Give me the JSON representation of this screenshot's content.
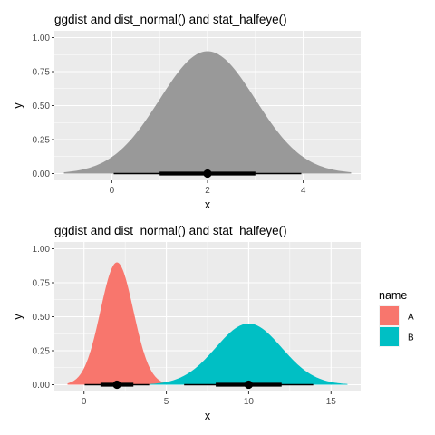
{
  "chart_data": [
    {
      "type": "area",
      "title": "ggdist and dist_normal() and stat_halfeye()",
      "xlabel": "x",
      "ylabel": "y",
      "xlim": [
        -1.2,
        5.2
      ],
      "ylim": [
        -0.05,
        1.05
      ],
      "x_ticks": [
        0,
        2,
        4
      ],
      "x_tick_labels": [
        "0",
        "2",
        "4"
      ],
      "y_ticks": [
        0,
        0.25,
        0.5,
        0.75,
        1
      ],
      "y_tick_labels": [
        "0.00",
        "0.25",
        "0.50",
        "0.75",
        "1.00"
      ],
      "grid": true,
      "series": [
        {
          "distribution": "normal",
          "mean": 2,
          "sd": 1,
          "density_range": [
            -1,
            5
          ],
          "peak_y": 0.9,
          "fill": "#999999",
          "point": 2,
          "interval_66": [
            1,
            3
          ],
          "interval_95": [
            0.04,
            3.96
          ]
        }
      ]
    },
    {
      "type": "area",
      "title": "ggdist and dist_normal() and stat_halfeye()",
      "xlabel": "x",
      "ylabel": "y",
      "xlim": [
        -1.8,
        16.8
      ],
      "ylim": [
        -0.05,
        1.05
      ],
      "x_ticks": [
        0,
        5,
        10,
        15
      ],
      "x_tick_labels": [
        "0",
        "5",
        "10",
        "15"
      ],
      "y_ticks": [
        0,
        0.25,
        0.5,
        0.75,
        1
      ],
      "y_tick_labels": [
        "0.00",
        "0.25",
        "0.50",
        "0.75",
        "1.00"
      ],
      "grid": true,
      "legend": {
        "title": "name",
        "position": "right",
        "entries": [
          {
            "label": "A",
            "color": "#F8766D"
          },
          {
            "label": "B",
            "color": "#00BFC4"
          }
        ]
      },
      "series": [
        {
          "name": "A",
          "distribution": "normal",
          "mean": 2,
          "sd": 1,
          "density_range": [
            -1,
            5
          ],
          "peak_y": 0.9,
          "fill": "#F8766D",
          "point": 2,
          "interval_66": [
            1,
            3
          ],
          "interval_95": [
            0.04,
            3.96
          ]
        },
        {
          "name": "B",
          "distribution": "normal",
          "mean": 10,
          "sd": 2,
          "density_range": [
            4,
            16
          ],
          "peak_y": 0.45,
          "fill": "#00BFC4",
          "point": 10,
          "interval_66": [
            8,
            12
          ],
          "interval_95": [
            6.08,
            13.92
          ]
        }
      ]
    }
  ]
}
